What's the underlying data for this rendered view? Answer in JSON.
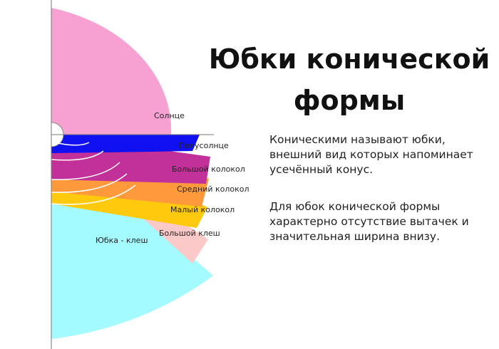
{
  "heading": "Юбки конической формы",
  "paragraph_1": "Коническими называют юбки, внешний вид которых напоминает усечённый конус.",
  "paragraph_2": "Для юбок конической формы характерно отсутствие вытачек и значительная ширина внизу.",
  "sectors": [
    {
      "label": "Солнце",
      "color": "#f7a1d3"
    },
    {
      "label": "Полусолнце",
      "color": "#1010f0"
    },
    {
      "label": "Большой колокол",
      "color": "#c2309a"
    },
    {
      "label": "Средний колокол",
      "color": "#ff9a3c"
    },
    {
      "label": "Малый колокол",
      "color": "#ffc90e"
    },
    {
      "label": "Большой клеш",
      "color": "#fcc9c9"
    },
    {
      "label": "Юбка - клеш",
      "color": "#a3fbff"
    }
  ]
}
